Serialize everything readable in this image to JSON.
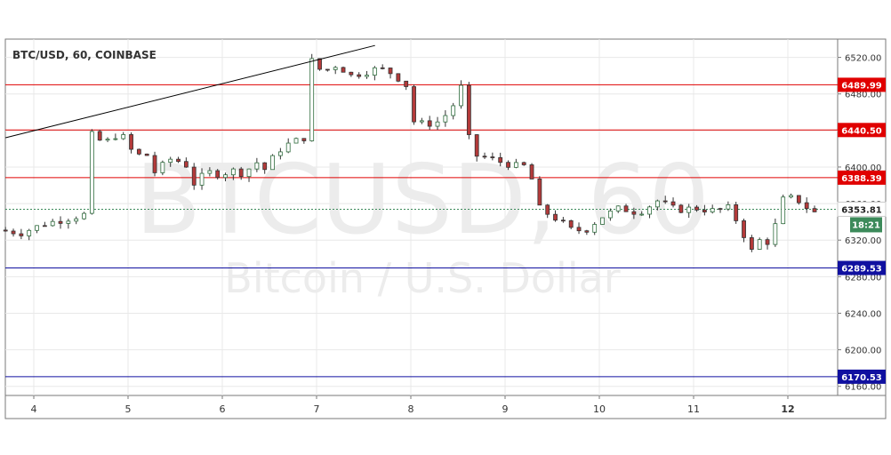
{
  "header": {
    "symbol_label": "BTC/USD, 60, COINBASE"
  },
  "watermark": {
    "main": "BTCUSD, 60",
    "sub": "Bitcoin / U.S. Dollar"
  },
  "colors": {
    "up": "#2e6b3c",
    "down": "#b43a3a",
    "resistance": "#e00000",
    "support": "#1010a0",
    "trendline": "#000000",
    "current_price": "#3c8a5a",
    "grid": "#e8e8e8",
    "axis_text": "#333333"
  },
  "chart_data": {
    "type": "candlestick",
    "title": "BTC/USD, 60, COINBASE",
    "x_tick_labels": [
      "4",
      "5",
      "6",
      "7",
      "8",
      "9",
      "10",
      "11",
      "12"
    ],
    "y_tick_labels": [
      "6160.00",
      "6200.00",
      "6240.00",
      "6280.00",
      "6320.00",
      "6360.00",
      "6400.00",
      "6440.00",
      "6480.00",
      "6520.00"
    ],
    "ylim": [
      6150,
      6540
    ],
    "grid": true,
    "horizontal_levels": [
      {
        "value": 6489.99,
        "label": "6489.99",
        "kind": "resistance"
      },
      {
        "value": 6440.5,
        "label": "6440.50",
        "kind": "resistance"
      },
      {
        "value": 6388.39,
        "label": "6388.39",
        "kind": "resistance"
      },
      {
        "value": 6289.53,
        "label": "6289.53",
        "kind": "support"
      },
      {
        "value": 6170.53,
        "label": "6170.53",
        "kind": "support"
      }
    ],
    "current_price": {
      "value": 6353.81,
      "label": "6353.81",
      "countdown": "18:21"
    },
    "trendline": {
      "from": {
        "day": 3.7,
        "price": 6432
      },
      "to": {
        "day": 7.62,
        "price": 6533
      }
    },
    "key_prices": [
      [
        3.7,
        6331
      ],
      [
        3.95,
        6328
      ],
      [
        4.2,
        6338
      ],
      [
        4.5,
        6345
      ],
      [
        4.62,
        6348
      ],
      [
        4.64,
        6432
      ],
      [
        4.72,
        6436
      ],
      [
        4.82,
        6425
      ],
      [
        5.0,
        6438
      ],
      [
        5.15,
        6413
      ],
      [
        5.3,
        6413
      ],
      [
        5.35,
        6393
      ],
      [
        5.55,
        6410
      ],
      [
        5.7,
        6402
      ],
      [
        5.8,
        6378
      ],
      [
        5.9,
        6395
      ],
      [
        6.05,
        6392
      ],
      [
        6.2,
        6396
      ],
      [
        6.3,
        6393
      ],
      [
        6.45,
        6405
      ],
      [
        6.55,
        6396
      ],
      [
        6.65,
        6416
      ],
      [
        6.8,
        6426
      ],
      [
        6.95,
        6432
      ],
      [
        6.98,
        6448
      ],
      [
        7.0,
        6522
      ],
      [
        7.05,
        6513
      ],
      [
        7.15,
        6504
      ],
      [
        7.3,
        6512
      ],
      [
        7.45,
        6500
      ],
      [
        7.6,
        6504
      ],
      [
        7.75,
        6508
      ],
      [
        7.9,
        6502
      ],
      [
        8.05,
        6488
      ],
      [
        8.12,
        6448
      ],
      [
        8.25,
        6447
      ],
      [
        8.4,
        6450
      ],
      [
        8.55,
        6470
      ],
      [
        8.62,
        6488
      ],
      [
        8.65,
        6450
      ],
      [
        8.75,
        6413
      ],
      [
        8.9,
        6410
      ],
      [
        9.05,
        6405
      ],
      [
        9.2,
        6401
      ],
      [
        9.35,
        6401
      ],
      [
        9.4,
        6358
      ],
      [
        9.55,
        6348
      ],
      [
        9.65,
        6342
      ],
      [
        9.8,
        6330
      ],
      [
        9.95,
        6332
      ],
      [
        10.1,
        6345
      ],
      [
        10.3,
        6355
      ],
      [
        10.5,
        6350
      ],
      [
        10.7,
        6363
      ],
      [
        10.9,
        6353
      ],
      [
        11.1,
        6355
      ],
      [
        11.3,
        6352
      ],
      [
        11.45,
        6355
      ],
      [
        11.55,
        6340
      ],
      [
        11.62,
        6325
      ],
      [
        11.7,
        6308
      ],
      [
        11.8,
        6322
      ],
      [
        11.92,
        6315
      ],
      [
        11.97,
        6350
      ],
      [
        12.05,
        6368
      ],
      [
        12.2,
        6363
      ],
      [
        12.35,
        6350
      ]
    ]
  }
}
